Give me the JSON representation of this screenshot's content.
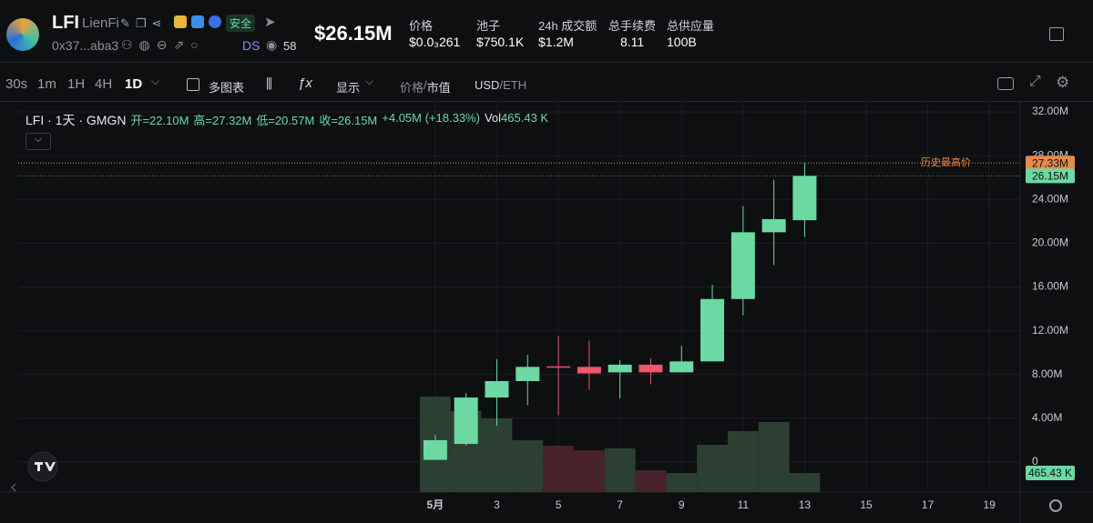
{
  "header": {
    "symbol": "LFI",
    "name": "LienFi",
    "address": "0x37...aba3",
    "safety": "安全",
    "ds": "DS",
    "watchers": "58",
    "market_cap": "$26.15M",
    "stats": [
      {
        "label": "价格",
        "value": "$0.0₃261"
      },
      {
        "label": "池子",
        "value": "$750.1K"
      },
      {
        "label": "24h 成交额",
        "value": "$1.2M"
      },
      {
        "label": "总手续费",
        "value": "8.11"
      },
      {
        "label": "总供应量",
        "value": "100B"
      }
    ]
  },
  "toolbar": {
    "intervals": [
      "30s",
      "1m",
      "1H",
      "4H",
      "1D"
    ],
    "multi_chart": "多图表",
    "display": "显示",
    "price": "价格",
    "separator": "/",
    "mcap": "市值",
    "usd": "USD",
    "eth": "ETH"
  },
  "chart_data": {
    "type": "candlestick",
    "legend": {
      "title": "LFI · 1天 · GMGN",
      "items": [
        "开=22.10M",
        "高=27.32M",
        "低=20.57M",
        "收=26.15M",
        "+4.05M (+18.33%)"
      ],
      "vol_label": "Vol",
      "vol": "465.43 K"
    },
    "x": [
      1,
      2,
      3,
      4,
      5,
      6,
      7,
      8,
      9,
      10,
      11,
      12,
      13
    ],
    "open": [
      0.2,
      1.66,
      5.9,
      7.4,
      8.75,
      8.7,
      8.2,
      8.9,
      8.2,
      9.2,
      14.9,
      21.0,
      22.1
    ],
    "high": [
      2.5,
      6.3,
      9.4,
      9.8,
      11.5,
      11.1,
      9.3,
      9.5,
      10.6,
      16.2,
      23.4,
      25.8,
      27.32
    ],
    "low": [
      0.2,
      1.5,
      3.3,
      5.2,
      4.3,
      6.6,
      5.8,
      7.1,
      8.2,
      9.2,
      13.4,
      18.0,
      20.57
    ],
    "close": [
      2.0,
      5.9,
      7.4,
      8.7,
      8.7,
      8.1,
      8.9,
      8.2,
      9.2,
      14.9,
      21.0,
      22.2,
      26.15
    ],
    "volume": [
      2327,
      1972,
      1795,
      1263,
      1130,
      1019,
      1064,
      532,
      465,
      1152,
      1485,
      1706,
      465.43
    ],
    "volume_value_labels": [
      null,
      null,
      null,
      null,
      null,
      null,
      null,
      null,
      null,
      null,
      null,
      null,
      "465.43 K"
    ],
    "up_color": "#6cd9a3",
    "down_color": "#f0566c",
    "volume_up_color": "#2c3f33",
    "volume_down_color": "#48222a",
    "xlim": [
      -13.14,
      20
    ],
    "xticks": [
      {
        "value": 1,
        "label": "5月"
      },
      3,
      5,
      7,
      9,
      11,
      13,
      15,
      17,
      19
    ],
    "ylim": [
      -2.74,
      32
    ],
    "yticks": [
      0,
      {
        "value": 4,
        "label": "4.00M"
      },
      {
        "value": 8,
        "label": "8.00M"
      },
      {
        "value": 12,
        "label": "12.00M"
      },
      {
        "value": 16,
        "label": "16.00M"
      },
      {
        "value": 20,
        "label": "20.00M"
      },
      {
        "value": 24,
        "label": "24.00M"
      },
      {
        "value": 28,
        "label": "28.00M"
      },
      {
        "value": 32,
        "label": "32.00M"
      }
    ],
    "y2lim": [
      0,
      9260
    ],
    "grid": true,
    "ath": {
      "value": 27.33,
      "label": "27.33M",
      "text": "历史最高价",
      "color": "#e58a4b"
    },
    "last_price": {
      "value": 26.15,
      "label": "26.15M"
    }
  }
}
